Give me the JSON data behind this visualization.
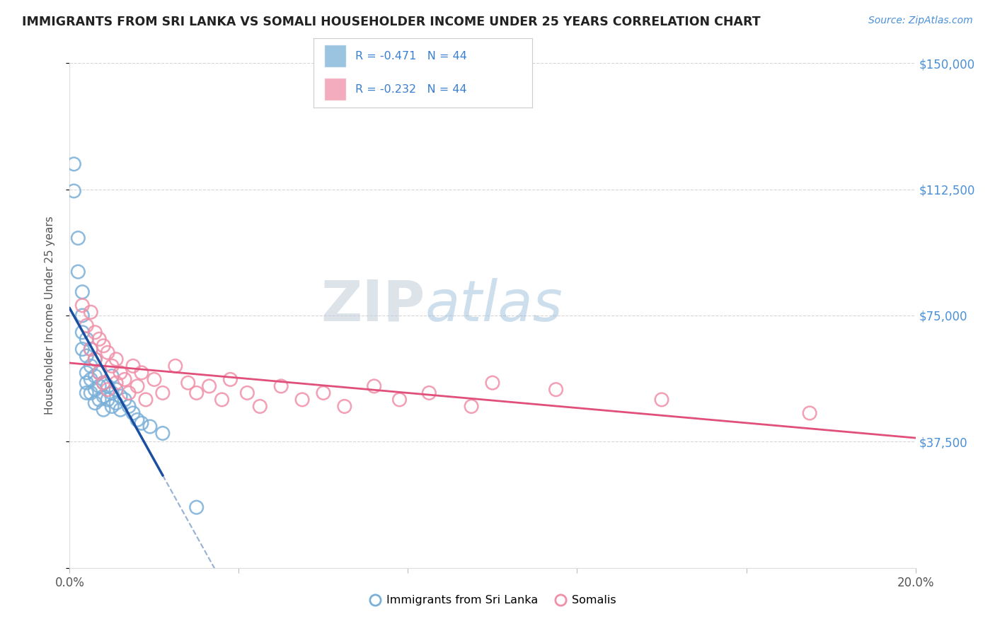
{
  "title": "IMMIGRANTS FROM SRI LANKA VS SOMALI HOUSEHOLDER INCOME UNDER 25 YEARS CORRELATION CHART",
  "source": "Source: ZipAtlas.com",
  "ylabel": "Householder Income Under 25 years",
  "xlim": [
    0.0,
    0.2
  ],
  "ylim": [
    0,
    150000
  ],
  "yticks": [
    0,
    37500,
    75000,
    112500,
    150000
  ],
  "ytick_labels": [
    "",
    "$37,500",
    "$75,000",
    "$112,500",
    "$150,000"
  ],
  "xticks": [
    0.0,
    0.04,
    0.08,
    0.12,
    0.16,
    0.2
  ],
  "xtick_labels": [
    "0.0%",
    "",
    "",
    "",
    "",
    "20.0%"
  ],
  "legend_entries": [
    {
      "label": "Immigrants from Sri Lanka",
      "color": "#aac4e8"
    },
    {
      "label": "Somalis",
      "color": "#f4aaba"
    }
  ],
  "r_sri_lanka": -0.471,
  "n_sri_lanka": 44,
  "r_somali": -0.232,
  "n_somali": 44,
  "sri_lanka_color": "#7ab0d8",
  "somali_color": "#f090a8",
  "regression_sri_lanka_color": "#1a4fa0",
  "regression_somali_color": "#e0507a",
  "watermark_zip": "ZIP",
  "watermark_atlas": "atlas",
  "background_color": "#ffffff",
  "sri_lanka_x": [
    0.001,
    0.001,
    0.002,
    0.002,
    0.003,
    0.003,
    0.003,
    0.003,
    0.004,
    0.004,
    0.004,
    0.004,
    0.004,
    0.005,
    0.005,
    0.005,
    0.005,
    0.006,
    0.006,
    0.006,
    0.006,
    0.007,
    0.007,
    0.007,
    0.008,
    0.008,
    0.008,
    0.009,
    0.009,
    0.01,
    0.01,
    0.01,
    0.011,
    0.011,
    0.012,
    0.012,
    0.013,
    0.014,
    0.015,
    0.016,
    0.017,
    0.019,
    0.022,
    0.03
  ],
  "sri_lanka_y": [
    120000,
    112000,
    98000,
    88000,
    82000,
    75000,
    70000,
    65000,
    68000,
    63000,
    58000,
    55000,
    52000,
    65000,
    60000,
    56000,
    52000,
    62000,
    57000,
    53000,
    49000,
    58000,
    54000,
    50000,
    55000,
    51000,
    47000,
    54000,
    50000,
    57000,
    52000,
    48000,
    53000,
    49000,
    51000,
    47000,
    50000,
    48000,
    46000,
    44000,
    43000,
    42000,
    40000,
    18000
  ],
  "somali_x": [
    0.003,
    0.004,
    0.005,
    0.005,
    0.006,
    0.006,
    0.007,
    0.007,
    0.008,
    0.008,
    0.009,
    0.009,
    0.01,
    0.011,
    0.011,
    0.012,
    0.013,
    0.014,
    0.015,
    0.016,
    0.017,
    0.018,
    0.02,
    0.022,
    0.025,
    0.028,
    0.03,
    0.033,
    0.036,
    0.038,
    0.042,
    0.045,
    0.05,
    0.055,
    0.06,
    0.065,
    0.072,
    0.078,
    0.085,
    0.095,
    0.1,
    0.115,
    0.14,
    0.175
  ],
  "somali_y": [
    78000,
    72000,
    76000,
    65000,
    70000,
    62000,
    68000,
    58000,
    66000,
    55000,
    64000,
    53000,
    60000,
    62000,
    55000,
    58000,
    56000,
    52000,
    60000,
    54000,
    58000,
    50000,
    56000,
    52000,
    60000,
    55000,
    52000,
    54000,
    50000,
    56000,
    52000,
    48000,
    54000,
    50000,
    52000,
    48000,
    54000,
    50000,
    52000,
    48000,
    55000,
    53000,
    50000,
    46000
  ]
}
